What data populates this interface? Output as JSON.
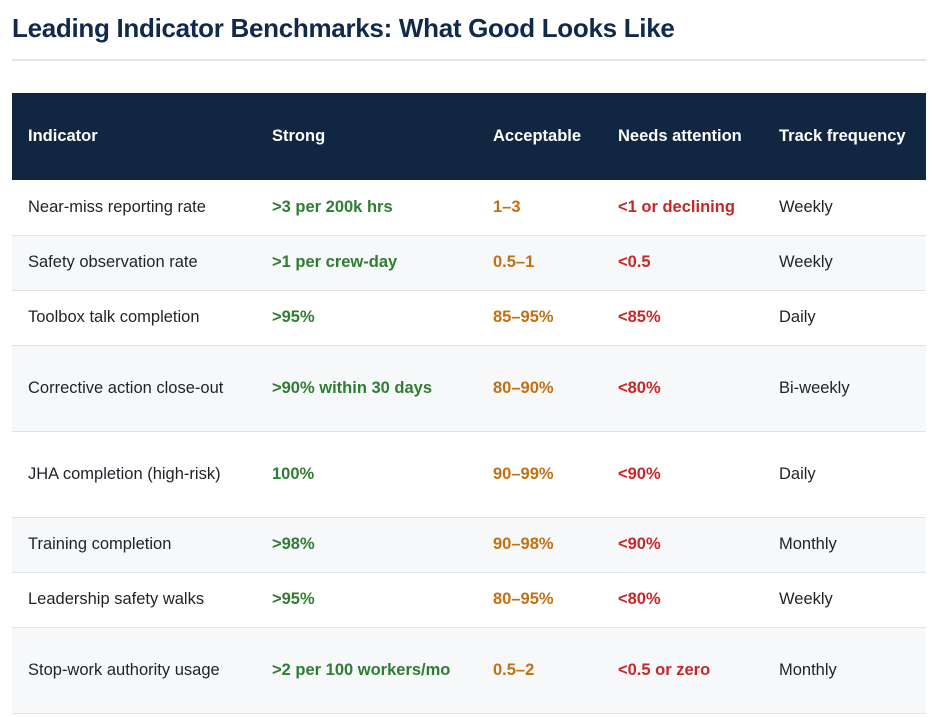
{
  "title": "Leading Indicator Benchmarks: What Good Looks Like",
  "columns": {
    "indicator": "Indicator",
    "strong": "Strong",
    "acceptable": "Acceptable",
    "needs_attention": "Needs attention",
    "track_frequency": "Track frequency"
  },
  "colors": {
    "header_bg": "#102641",
    "title": "#102a4c",
    "strong": "#2e7d32",
    "acceptable": "#c17111",
    "needs_attention": "#c62828"
  },
  "rows": [
    {
      "indicator": "Near-miss reporting rate",
      "strong": ">3 per 200k hrs",
      "acceptable": "1–3",
      "needs_attention": "<1 or declining",
      "frequency": "Weekly"
    },
    {
      "indicator": "Safety observation rate",
      "strong": ">1 per crew-day",
      "acceptable": "0.5–1",
      "needs_attention": "<0.5",
      "frequency": "Weekly"
    },
    {
      "indicator": "Toolbox talk completion",
      "strong": ">95%",
      "acceptable": "85–95%",
      "needs_attention": "<85%",
      "frequency": "Daily"
    },
    {
      "indicator": "Corrective action close-out",
      "strong": ">90% within 30 days",
      "acceptable": "80–90%",
      "needs_attention": "<80%",
      "frequency": "Bi-weekly"
    },
    {
      "indicator": "JHA completion (high-risk)",
      "strong": "100%",
      "acceptable": "90–99%",
      "needs_attention": "<90%",
      "frequency": "Daily"
    },
    {
      "indicator": "Training completion",
      "strong": ">98%",
      "acceptable": "90–98%",
      "needs_attention": "<90%",
      "frequency": "Monthly"
    },
    {
      "indicator": "Leadership safety walks",
      "strong": ">95%",
      "acceptable": "80–95%",
      "needs_attention": "<80%",
      "frequency": "Weekly"
    },
    {
      "indicator": "Stop-work authority usage",
      "strong": ">2 per 100 workers/mo",
      "acceptable": "0.5–2",
      "needs_attention": "<0.5 or zero",
      "frequency": "Monthly"
    }
  ]
}
